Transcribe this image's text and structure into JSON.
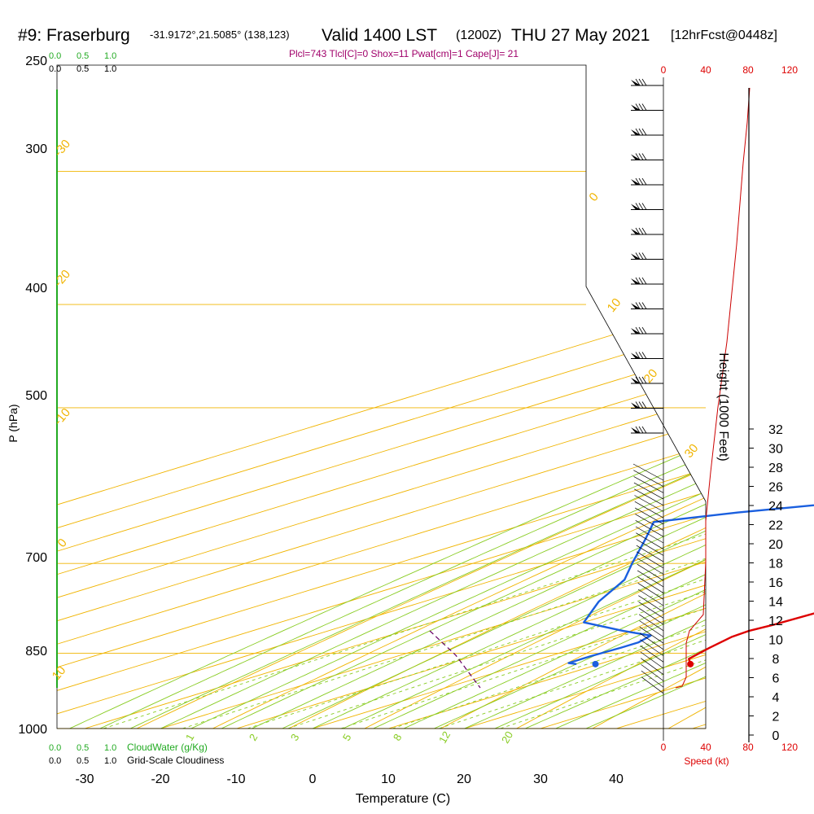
{
  "header": {
    "station": "#9: Fraserburg",
    "coords": "-31.9172°,21.5085° (138,123)",
    "valid": "Valid 1400 LST",
    "utc": "(1200Z)",
    "date": "THU 27 May 2021",
    "forecast": "[12hrFcst@0448z]"
  },
  "indices": "Plcl=743 Tlcl[C]=0 Shox=11 Pwat[cm]=1 Cape[J]= 21",
  "chart_data": {
    "type": "line",
    "xlabel": "Temperature (C)",
    "ylabel": "P (hPa)",
    "x_ticks": [
      "-30",
      "-20",
      "-10",
      "0",
      "10",
      "20",
      "30",
      "40"
    ],
    "p_ticks": [
      "250",
      "300",
      "400",
      "500",
      "700",
      "850",
      "1000"
    ],
    "height_label": "Height (1000 Feet)",
    "height_ticks": [
      "0",
      "2",
      "4",
      "6",
      "8",
      "10",
      "12",
      "14",
      "16",
      "18",
      "20",
      "22",
      "24",
      "26",
      "28",
      "30",
      "32"
    ],
    "isotherm_labels": [
      "-30",
      "-20",
      "-10",
      "0",
      "10",
      "20",
      "30",
      "0",
      "10",
      "20",
      "30"
    ],
    "mixing_ratio_labels": [
      "1",
      "2",
      "3",
      "5",
      "8",
      "12",
      "20"
    ],
    "series": [
      {
        "color": "#dd0000",
        "values": [
          [
            22.0,
            870
          ],
          [
            19.5,
            860
          ],
          [
            17.5,
            840
          ],
          [
            15.7,
            820
          ],
          [
            15.4,
            810
          ],
          [
            16.0,
            800
          ],
          [
            16.5,
            780
          ],
          [
            16.4,
            750
          ],
          [
            16.3,
            700
          ],
          [
            16.5,
            670
          ],
          [
            16.8,
            650
          ],
          [
            16.8,
            620
          ],
          [
            16.1,
            600
          ],
          [
            15.1,
            580
          ],
          [
            13.7,
            550
          ],
          [
            11.6,
            520
          ],
          [
            10.1,
            500
          ],
          [
            8.4,
            480
          ],
          [
            6.2,
            460
          ],
          [
            4.1,
            440
          ],
          [
            1.8,
            420
          ],
          [
            -0.8,
            400
          ],
          [
            -3.2,
            380
          ],
          [
            -5.4,
            360
          ],
          [
            -7.7,
            340
          ],
          [
            -10.2,
            320
          ],
          [
            -12.6,
            300
          ],
          [
            -15.1,
            280
          ],
          [
            -17.0,
            265
          ]
        ]
      },
      {
        "color": "#1a5fdf",
        "values": [
          [
            7.0,
            870
          ],
          [
            5.5,
            868
          ],
          [
            5.5,
            855
          ],
          [
            5.8,
            840
          ],
          [
            5.8,
            830
          ],
          [
            4.5,
            818
          ],
          [
            -1.0,
            810
          ],
          [
            -10.0,
            795
          ],
          [
            -17.0,
            760
          ],
          [
            -23.0,
            725
          ],
          [
            -29.0,
            700
          ],
          [
            -37.5,
            665
          ],
          [
            -44.0,
            640
          ],
          [
            -37.0,
            627
          ],
          [
            -25.0,
            610
          ],
          [
            -15.0,
            590
          ],
          [
            -8.0,
            570
          ],
          [
            -3.5,
            545
          ],
          [
            -2.0,
            520
          ],
          [
            -4.0,
            500
          ],
          [
            -6.5,
            480
          ],
          [
            -10.0,
            470
          ],
          [
            -13.5,
            450
          ],
          [
            -17.0,
            430
          ],
          [
            -20.5,
            410
          ],
          [
            -23.8,
            390
          ],
          [
            -27.8,
            370
          ],
          [
            -30.5,
            350
          ],
          [
            -33.5,
            330
          ],
          [
            -36.0,
            310
          ],
          [
            -38.2,
            295
          ],
          [
            -40.8,
            280
          ],
          [
            -43.0,
            265
          ]
        ]
      }
    ],
    "parcel_dewpoint_marker": [
      9.5,
      870
    ],
    "ylim": [
      250,
      1000
    ],
    "xlim": [
      -35,
      46
    ]
  },
  "wind_panel": {
    "speed_ticks": [
      "0",
      "40",
      "80",
      "120"
    ],
    "speed_label": "Speed (kt)"
  },
  "cloud_scale": {
    "ticks": [
      "0.0",
      "0.5",
      "1.0"
    ],
    "label": "CloudWater (g/Kg)",
    "grid_label": "Grid-Scale Cloudiness"
  }
}
